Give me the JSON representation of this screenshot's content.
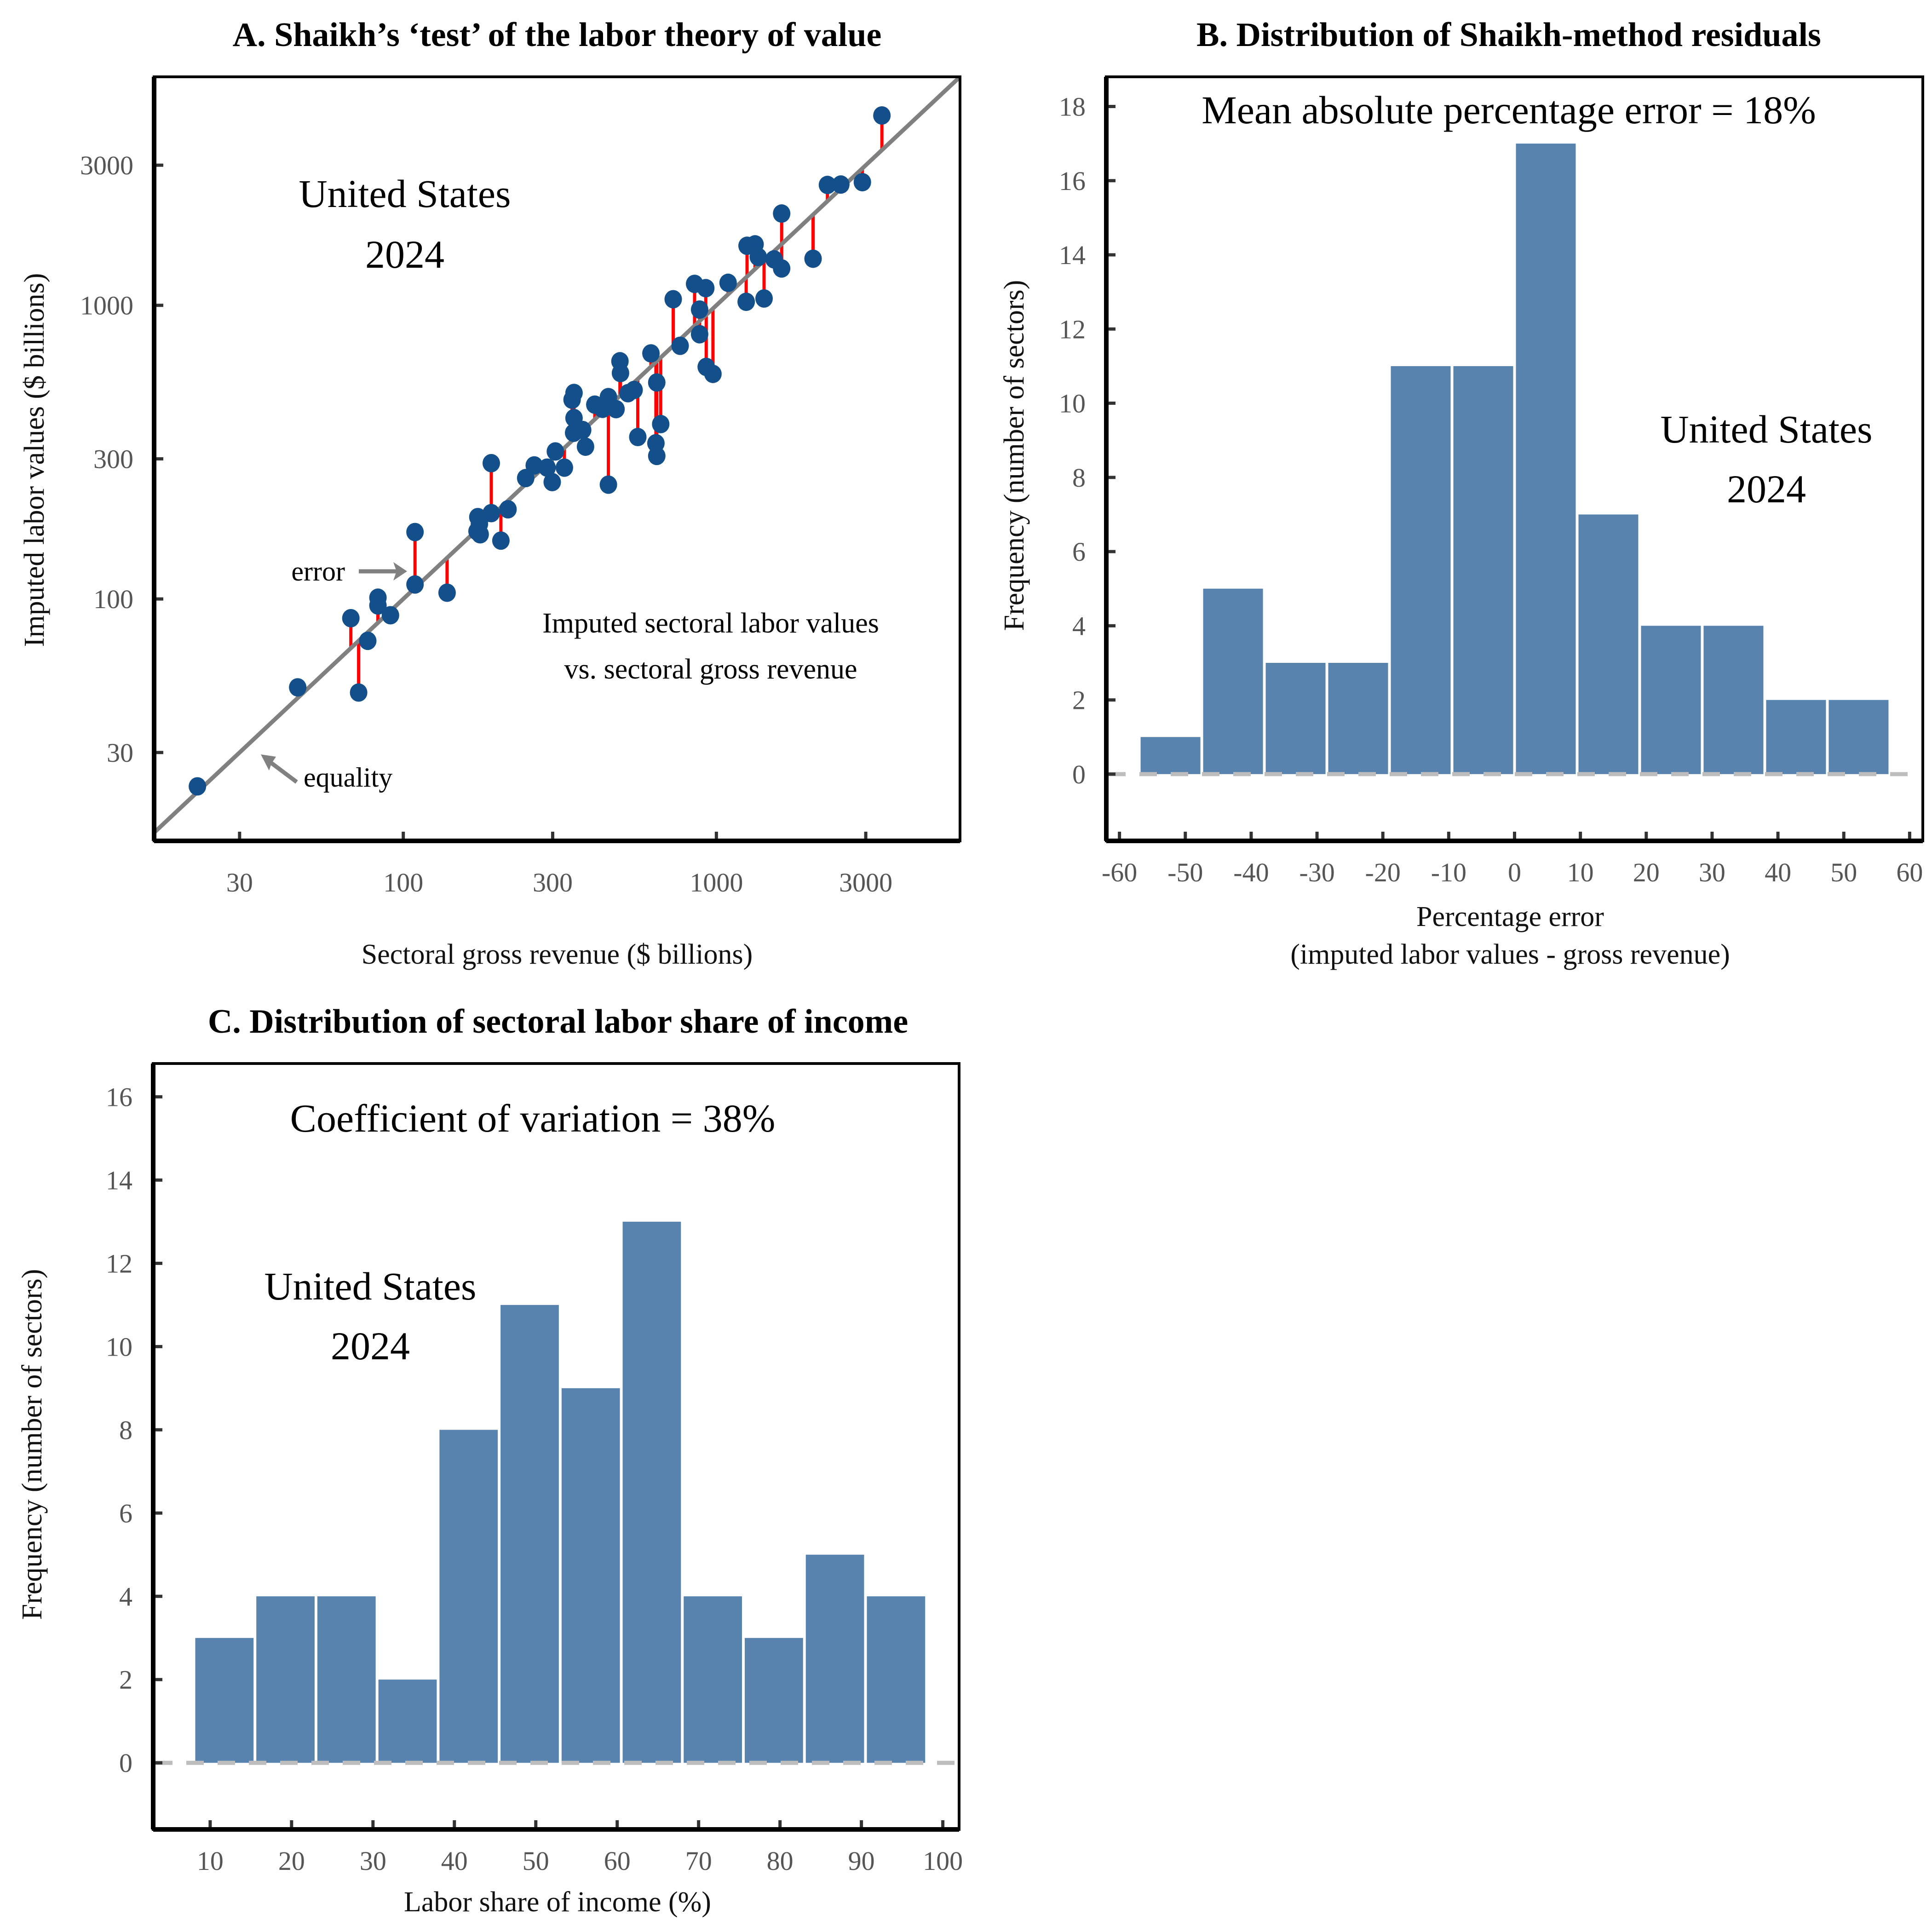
{
  "colors": {
    "point": "#134f8a",
    "error_line": "#ff0000",
    "equality_line": "#808080",
    "bar": "#5983af",
    "zero_line": "#bdbdbd",
    "tick_label": "#555555"
  },
  "chart_data": [
    {
      "id": "A",
      "type": "scatter",
      "title": "A.  Shaikh’s ‘test’ of the labor theory of value",
      "xlabel": "Sectoral gross revenue ($ billions)",
      "ylabel": "Imputed labor values ($ billions)",
      "xscale": "log",
      "yscale": "log",
      "xlim": [
        16,
        6000
      ],
      "ylim": [
        15,
        6000
      ],
      "xticks": [
        30,
        100,
        300,
        1000,
        3000
      ],
      "yticks": [
        30,
        100,
        300,
        1000,
        3000
      ],
      "xtick_labels": [
        "30",
        "100",
        "300",
        "1000",
        "3000"
      ],
      "ytick_labels": [
        "30",
        "100",
        "300",
        "1000",
        "3000"
      ],
      "grid": false,
      "reference_line": "y = x (equality)",
      "annotations": {
        "country": "United States",
        "year": "2024",
        "error_label": "error",
        "equality_label": "equality",
        "description_line1": "Imputed sectoral labor values",
        "description_line2": "vs. sectoral gross revenue"
      },
      "points": [
        {
          "x": 22,
          "y": 23
        },
        {
          "x": 46,
          "y": 50
        },
        {
          "x": 68,
          "y": 86
        },
        {
          "x": 72,
          "y": 48
        },
        {
          "x": 77,
          "y": 72
        },
        {
          "x": 83,
          "y": 101
        },
        {
          "x": 83,
          "y": 95
        },
        {
          "x": 91,
          "y": 88
        },
        {
          "x": 109,
          "y": 169
        },
        {
          "x": 109,
          "y": 112
        },
        {
          "x": 138,
          "y": 105
        },
        {
          "x": 173,
          "y": 190
        },
        {
          "x": 175,
          "y": 180
        },
        {
          "x": 172,
          "y": 170
        },
        {
          "x": 176,
          "y": 166
        },
        {
          "x": 191,
          "y": 196
        },
        {
          "x": 205,
          "y": 158
        },
        {
          "x": 216,
          "y": 202
        },
        {
          "x": 191,
          "y": 290
        },
        {
          "x": 262,
          "y": 285
        },
        {
          "x": 246,
          "y": 258
        },
        {
          "x": 306,
          "y": 318
        },
        {
          "x": 299,
          "y": 250
        },
        {
          "x": 327,
          "y": 280
        },
        {
          "x": 288,
          "y": 280
        },
        {
          "x": 346,
          "y": 477
        },
        {
          "x": 351,
          "y": 503
        },
        {
          "x": 351,
          "y": 413
        },
        {
          "x": 350,
          "y": 368
        },
        {
          "x": 374,
          "y": 376
        },
        {
          "x": 382,
          "y": 330
        },
        {
          "x": 409,
          "y": 459
        },
        {
          "x": 433,
          "y": 444
        },
        {
          "x": 452,
          "y": 487
        },
        {
          "x": 452,
          "y": 245
        },
        {
          "x": 478,
          "y": 443
        },
        {
          "x": 492,
          "y": 645
        },
        {
          "x": 494,
          "y": 588
        },
        {
          "x": 522,
          "y": 502
        },
        {
          "x": 546,
          "y": 515
        },
        {
          "x": 561,
          "y": 356
        },
        {
          "x": 618,
          "y": 686
        },
        {
          "x": 645,
          "y": 546
        },
        {
          "x": 641,
          "y": 339
        },
        {
          "x": 645,
          "y": 307
        },
        {
          "x": 664,
          "y": 394
        },
        {
          "x": 728,
          "y": 1049
        },
        {
          "x": 766,
          "y": 728
        },
        {
          "x": 852,
          "y": 1183
        },
        {
          "x": 884,
          "y": 967
        },
        {
          "x": 884,
          "y": 797
        },
        {
          "x": 925,
          "y": 1144
        },
        {
          "x": 928,
          "y": 617
        },
        {
          "x": 975,
          "y": 584
        },
        {
          "x": 1090,
          "y": 1193
        },
        {
          "x": 1253,
          "y": 1595
        },
        {
          "x": 1329,
          "y": 1613
        },
        {
          "x": 1361,
          "y": 1461
        },
        {
          "x": 1245,
          "y": 1028
        },
        {
          "x": 1420,
          "y": 1055
        },
        {
          "x": 1528,
          "y": 1434
        },
        {
          "x": 1616,
          "y": 2054
        },
        {
          "x": 1616,
          "y": 1335
        },
        {
          "x": 2036,
          "y": 1441
        },
        {
          "x": 2263,
          "y": 2570
        },
        {
          "x": 2497,
          "y": 2578
        },
        {
          "x": 2926,
          "y": 2626
        },
        {
          "x": 3378,
          "y": 4431
        }
      ]
    },
    {
      "id": "B",
      "type": "bar",
      "subtype": "histogram",
      "title": "B. Distribution of Shaikh-method residuals",
      "xlabel": "Percentage error",
      "xlabel_line2": "(imputed labor values - gross revenue)",
      "ylabel": "Frequency (number of sectors)",
      "xlim": [
        -62,
        62
      ],
      "ylim": [
        -1.8,
        18.8
      ],
      "xticks": [
        -60,
        -50,
        -40,
        -30,
        -20,
        -10,
        0,
        10,
        20,
        30,
        40,
        50,
        60
      ],
      "yticks": [
        0,
        2,
        4,
        6,
        8,
        10,
        12,
        14,
        16,
        18
      ],
      "grid": false,
      "annotations": {
        "stat": "Mean absolute percentage error = 18%",
        "country": "United States",
        "year": "2024"
      },
      "bin_width": 9.5,
      "bin_edges_start": -57,
      "values": [
        1,
        5,
        3,
        3,
        11,
        11,
        17,
        7,
        4,
        4,
        2,
        2
      ]
    },
    {
      "id": "C",
      "type": "bar",
      "subtype": "histogram",
      "title": "C. Distribution of sectoral labor share of income",
      "xlabel": "Labor share of income (%)",
      "ylabel": "Frequency (number of sectors)",
      "xlim": [
        3,
        102
      ],
      "ylim": [
        -1.6,
        16.8
      ],
      "xticks": [
        10,
        20,
        30,
        40,
        50,
        60,
        70,
        80,
        90,
        100
      ],
      "yticks": [
        0,
        2,
        4,
        6,
        8,
        10,
        12,
        14,
        16
      ],
      "grid": false,
      "annotations": {
        "stat": "Coefficient of variation = 38%",
        "country": "United States",
        "year": "2024"
      },
      "bin_width": 7.5,
      "bin_edges_start": 8,
      "values": [
        3,
        4,
        4,
        2,
        8,
        11,
        9,
        13,
        4,
        3,
        5,
        4
      ]
    }
  ]
}
